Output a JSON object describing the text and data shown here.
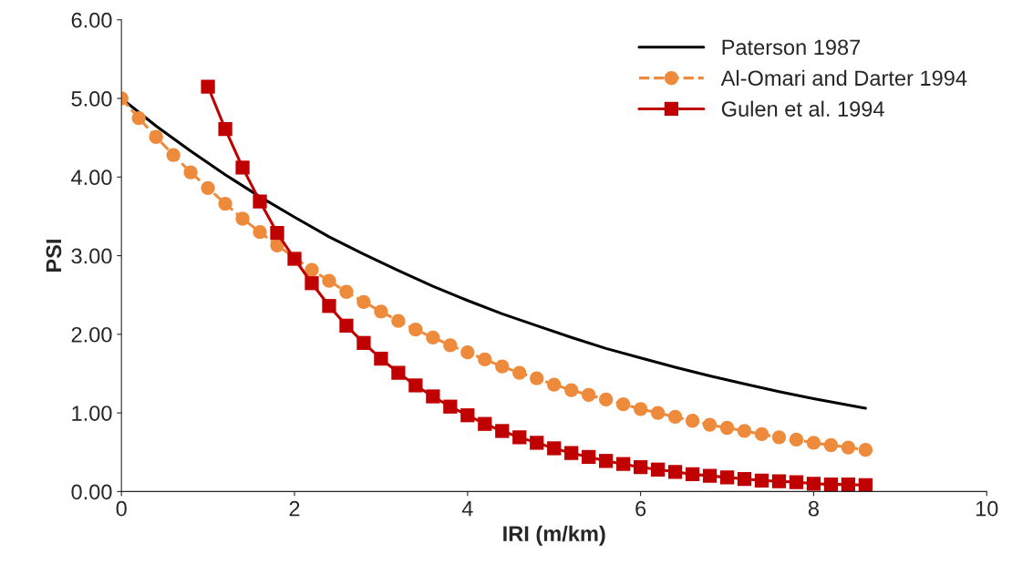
{
  "chart_data": {
    "type": "line",
    "xlabel": "IRI (m/km)",
    "ylabel": "PSI",
    "xlim": [
      0,
      10
    ],
    "xticks": [
      0,
      2,
      4,
      6,
      8,
      10
    ],
    "ylim": [
      0,
      6
    ],
    "yticks": [
      {
        "value": 0,
        "label": "0.00"
      },
      {
        "value": 1,
        "label": "1.00"
      },
      {
        "value": 2,
        "label": "2.00"
      },
      {
        "value": 3,
        "label": "3.00"
      },
      {
        "value": 4,
        "label": "4.00"
      },
      {
        "value": 5,
        "label": "5.00"
      },
      {
        "value": 6,
        "label": "6.00"
      }
    ],
    "grid": false,
    "legend": "top right",
    "series": [
      {
        "name": "Paterson 1987",
        "color": "#000000",
        "marker": "none",
        "line_style": "solid",
        "x": [
          0,
          0.4,
          0.8,
          1.2,
          1.6,
          2,
          2.4,
          2.8,
          3.2,
          3.6,
          4,
          4.4,
          4.8,
          5.2,
          5.6,
          6,
          6.4,
          6.8,
          7.2,
          7.6,
          8,
          8.4,
          8.6
        ],
        "values": [
          5.0,
          4.65,
          4.33,
          4.03,
          3.75,
          3.49,
          3.24,
          3.02,
          2.81,
          2.61,
          2.43,
          2.26,
          2.11,
          1.96,
          1.82,
          1.7,
          1.58,
          1.47,
          1.37,
          1.27,
          1.18,
          1.1,
          1.06
        ]
      },
      {
        "name": "Al-Omari and Darter 1994",
        "color": "#ed8a3c",
        "marker": "circle",
        "line_style": "dashed",
        "x": [
          0,
          0.2,
          0.4,
          0.6,
          0.8,
          1,
          1.2,
          1.4,
          1.6,
          1.8,
          2,
          2.2,
          2.4,
          2.6,
          2.8,
          3,
          3.2,
          3.4,
          3.6,
          3.8,
          4,
          4.2,
          4.4,
          4.6,
          4.8,
          5,
          5.2,
          5.4,
          5.6,
          5.8,
          6,
          6.2,
          6.4,
          6.6,
          6.8,
          7,
          7.2,
          7.4,
          7.6,
          7.8,
          8,
          8.2,
          8.4,
          8.6
        ],
        "values": [
          5.0,
          4.75,
          4.51,
          4.28,
          4.06,
          3.86,
          3.66,
          3.47,
          3.3,
          3.13,
          null,
          2.82,
          2.68,
          2.54,
          2.41,
          2.29,
          2.17,
          2.06,
          1.96,
          1.86,
          1.77,
          1.68,
          1.59,
          1.51,
          1.44,
          1.36,
          1.29,
          1.23,
          1.17,
          1.11,
          1.05,
          1.0,
          0.95,
          0.9,
          0.85,
          0.81,
          0.77,
          0.73,
          0.69,
          0.66,
          0.62,
          0.59,
          0.56,
          0.53
        ]
      },
      {
        "name": "Gulen et al. 1994",
        "color": "#c00000",
        "marker": "square",
        "line_style": "solid",
        "x": [
          1,
          1.2,
          1.4,
          1.6,
          1.8,
          2,
          2.2,
          2.4,
          2.6,
          2.8,
          3,
          3.2,
          3.4,
          3.6,
          3.8,
          4,
          4.2,
          4.4,
          4.6,
          4.8,
          5,
          5.2,
          5.4,
          5.6,
          5.8,
          6,
          6.2,
          6.4,
          6.6,
          6.8,
          7,
          7.2,
          7.4,
          7.6,
          7.8,
          8,
          8.2,
          8.4,
          8.6
        ],
        "values": [
          5.15,
          4.61,
          4.12,
          3.69,
          3.29,
          2.96,
          2.65,
          2.36,
          2.11,
          1.89,
          1.69,
          1.51,
          1.35,
          1.21,
          1.08,
          0.97,
          0.86,
          0.77,
          0.69,
          0.62,
          0.55,
          0.49,
          0.44,
          0.39,
          0.35,
          0.31,
          0.28,
          0.25,
          0.22,
          0.2,
          0.18,
          0.16,
          0.14,
          0.13,
          0.12,
          0.1,
          0.09,
          0.09,
          0.08
        ]
      }
    ]
  }
}
